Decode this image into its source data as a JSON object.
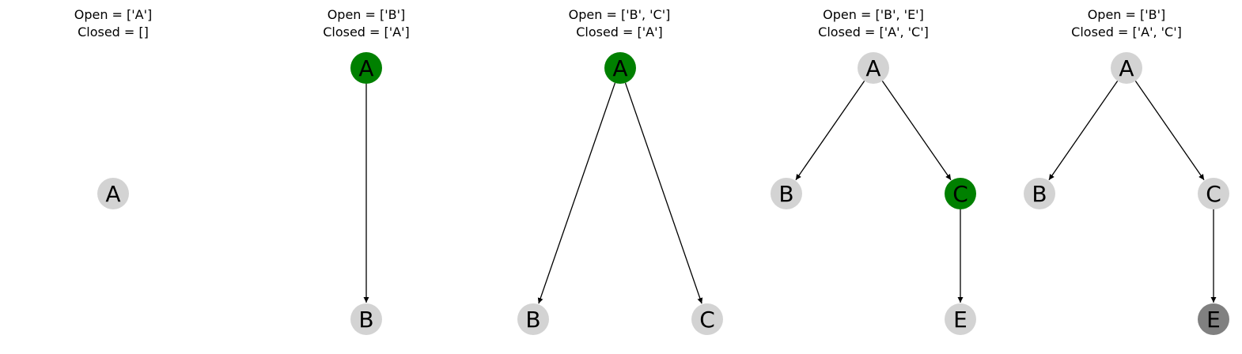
{
  "colors": {
    "default": "#d3d3d3",
    "current": "#008000",
    "goal": "#808080",
    "edge": "#000000"
  },
  "panels": [
    {
      "id": "step-1",
      "open_text": "Open = ['A']",
      "closed_text": "Closed = []",
      "nodes": [
        {
          "id": "A",
          "label": "A",
          "state": "default"
        }
      ],
      "edges": []
    },
    {
      "id": "step-2",
      "open_text": "Open = ['B']",
      "closed_text": "Closed = ['A']",
      "nodes": [
        {
          "id": "A",
          "label": "A",
          "state": "current"
        },
        {
          "id": "B",
          "label": "B",
          "state": "default"
        }
      ],
      "edges": [
        {
          "from": "A",
          "to": "B"
        }
      ]
    },
    {
      "id": "step-3",
      "open_text": "Open = ['B', 'C']",
      "closed_text": "Closed = ['A']",
      "nodes": [
        {
          "id": "A",
          "label": "A",
          "state": "current"
        },
        {
          "id": "B",
          "label": "B",
          "state": "default"
        },
        {
          "id": "C",
          "label": "C",
          "state": "default"
        }
      ],
      "edges": [
        {
          "from": "A",
          "to": "B"
        },
        {
          "from": "A",
          "to": "C"
        }
      ]
    },
    {
      "id": "step-4",
      "open_text": "Open = ['B', 'E']",
      "closed_text": "Closed = ['A', 'C']",
      "nodes": [
        {
          "id": "A",
          "label": "A",
          "state": "default"
        },
        {
          "id": "B",
          "label": "B",
          "state": "default"
        },
        {
          "id": "C",
          "label": "C",
          "state": "current"
        },
        {
          "id": "E",
          "label": "E",
          "state": "default"
        }
      ],
      "edges": [
        {
          "from": "A",
          "to": "B"
        },
        {
          "from": "A",
          "to": "C"
        },
        {
          "from": "C",
          "to": "E"
        }
      ]
    },
    {
      "id": "step-5",
      "open_text": "Open = ['B']",
      "closed_text": "Closed = ['A', 'C']",
      "nodes": [
        {
          "id": "A",
          "label": "A",
          "state": "default"
        },
        {
          "id": "B",
          "label": "B",
          "state": "default"
        },
        {
          "id": "C",
          "label": "C",
          "state": "default"
        },
        {
          "id": "E",
          "label": "E",
          "state": "goal"
        }
      ],
      "edges": [
        {
          "from": "A",
          "to": "B"
        },
        {
          "from": "A",
          "to": "C"
        },
        {
          "from": "C",
          "to": "E"
        }
      ]
    }
  ]
}
